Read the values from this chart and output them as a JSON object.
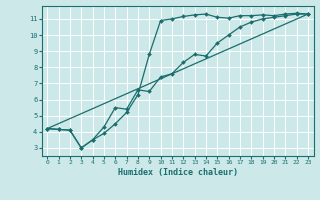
{
  "xlabel": "Humidex (Indice chaleur)",
  "bg_color": "#cce8e8",
  "grid_color": "#ffffff",
  "line_color": "#1a6e6e",
  "xlim": [
    -0.5,
    23.5
  ],
  "ylim": [
    2.5,
    11.8
  ],
  "xticks": [
    0,
    1,
    2,
    3,
    4,
    5,
    6,
    7,
    8,
    9,
    10,
    11,
    12,
    13,
    14,
    15,
    16,
    17,
    18,
    19,
    20,
    21,
    22,
    23
  ],
  "yticks": [
    3,
    4,
    5,
    6,
    7,
    8,
    9,
    10,
    11
  ],
  "line1_x": [
    0,
    1,
    2,
    3,
    4,
    5,
    6,
    7,
    8,
    9,
    10,
    11,
    12,
    13,
    14,
    15,
    16,
    17,
    18,
    19,
    20,
    21,
    22,
    23
  ],
  "line1_y": [
    4.2,
    4.15,
    4.1,
    3.0,
    3.5,
    3.9,
    4.5,
    5.2,
    6.3,
    8.8,
    10.9,
    11.0,
    11.15,
    11.25,
    11.3,
    11.1,
    11.05,
    11.2,
    11.2,
    11.25,
    11.2,
    11.3,
    11.35,
    11.3
  ],
  "line2_x": [
    0,
    1,
    2,
    3,
    4,
    5,
    6,
    7,
    8,
    9,
    10,
    11,
    12,
    13,
    14,
    15,
    16,
    17,
    18,
    19,
    20,
    21,
    22,
    23
  ],
  "line2_y": [
    4.2,
    4.15,
    4.1,
    3.0,
    3.5,
    4.3,
    5.5,
    5.4,
    6.6,
    6.5,
    7.4,
    7.6,
    8.3,
    8.8,
    8.7,
    9.5,
    10.0,
    10.5,
    10.8,
    11.0,
    11.1,
    11.2,
    11.3,
    11.3
  ],
  "line3_x": [
    0,
    23
  ],
  "line3_y": [
    4.2,
    11.3
  ]
}
